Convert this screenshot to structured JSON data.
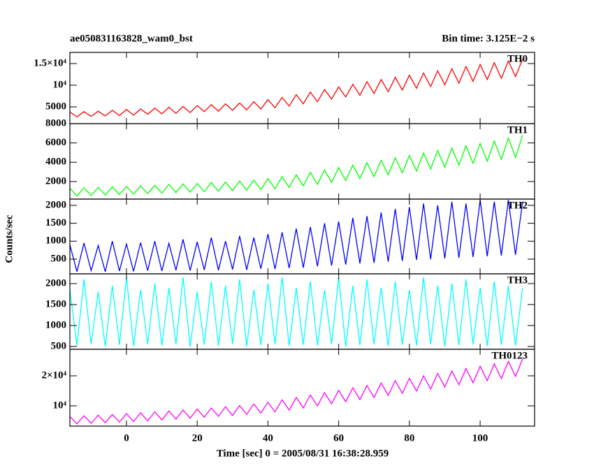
{
  "chart_data": {
    "type": "line",
    "title": "ae050831163828_wam0_bst",
    "subtitle": "Bin time: 3.125E−2 s",
    "xlabel": "Time [sec] 0 = 2005/08/31 16:38:28.959",
    "ylabel": "Counts/sec",
    "xlim": [
      -16,
      115.4
    ],
    "xticks": [
      0,
      20,
      40,
      60,
      80,
      100
    ],
    "x": [
      -16,
      -14,
      -12,
      -10,
      -8,
      -6,
      -4,
      -2,
      0,
      2,
      4,
      6,
      8,
      10,
      12,
      14,
      16,
      18,
      20,
      22,
      24,
      26,
      28,
      30,
      32,
      34,
      36,
      38,
      40,
      42,
      44,
      46,
      48,
      50,
      52,
      54,
      56,
      58,
      60,
      62,
      64,
      66,
      68,
      70,
      72,
      74,
      76,
      78,
      80,
      82,
      84,
      86,
      88,
      90,
      92,
      94,
      96,
      98,
      100,
      102,
      104,
      106,
      108,
      110,
      112
    ],
    "series": [
      {
        "name": "TH0",
        "color": "#ff0000",
        "ylim": [
          1130,
          17580
        ],
        "yticks": [
          5000,
          {
            "value": 10000,
            "label": "10⁴"
          },
          {
            "value": 15000,
            "label": "1.5×10⁴"
          }
        ],
        "values": [
          3800,
          2700,
          3900,
          2800,
          4000,
          2900,
          4200,
          3000,
          4400,
          3100,
          4500,
          3300,
          4700,
          3400,
          4900,
          3500,
          5100,
          3700,
          5300,
          3900,
          5500,
          4000,
          5700,
          4200,
          5900,
          4300,
          6200,
          4500,
          6700,
          4800,
          7200,
          5200,
          7800,
          5700,
          8400,
          6200,
          9000,
          6800,
          9600,
          7300,
          10200,
          7700,
          10800,
          8100,
          11300,
          8500,
          11800,
          8900,
          12300,
          9300,
          12800,
          9700,
          13300,
          10100,
          13800,
          10500,
          14300,
          10900,
          14800,
          11300,
          15200,
          11600,
          15600,
          12000,
          16000
        ]
      },
      {
        "name": "TH1",
        "color": "#00ff00",
        "ylim": [
          180,
          8000
        ],
        "yticks": [
          2000,
          4000,
          6000,
          8000
        ],
        "values": [
          1300,
          500,
          1350,
          550,
          1400,
          600,
          1450,
          650,
          1500,
          700,
          1550,
          750,
          1600,
          800,
          1700,
          850,
          1750,
          900,
          1800,
          950,
          1900,
          1000,
          1950,
          1050,
          2050,
          1100,
          2150,
          1150,
          2300,
          1250,
          2500,
          1400,
          2700,
          1550,
          2950,
          1700,
          3200,
          1900,
          3450,
          2100,
          3700,
          2300,
          3950,
          2500,
          4200,
          2700,
          4450,
          2900,
          4700,
          3100,
          4950,
          3300,
          5200,
          3500,
          5450,
          3700,
          5700,
          3900,
          5950,
          4100,
          6200,
          4300,
          6500,
          4500,
          6800
        ]
      },
      {
        "name": "TH2",
        "color": "#0000ff",
        "ylim": [
          90,
          2175
        ],
        "yticks": [
          500,
          1000,
          1500,
          2000
        ],
        "values": [
          900,
          150,
          950,
          180,
          880,
          150,
          1000,
          170,
          920,
          160,
          960,
          180,
          1000,
          170,
          940,
          190,
          1050,
          180,
          980,
          200,
          1100,
          190,
          1000,
          210,
          1150,
          200,
          1100,
          230,
          1200,
          220,
          1250,
          250,
          1350,
          260,
          1400,
          300,
          1500,
          320,
          1550,
          350,
          1650,
          380,
          1700,
          400,
          1800,
          430,
          1900,
          450,
          1950,
          480,
          2050,
          500,
          2000,
          520,
          2100,
          540,
          2050,
          560,
          2150,
          580,
          2100,
          600,
          2150,
          620,
          2100
        ]
      },
      {
        "name": "TH3",
        "color": "#00ffff",
        "ylim": [
          433,
          2233
        ],
        "yticks": [
          500,
          1000,
          1500,
          2000
        ],
        "values": [
          1850,
          520,
          2100,
          560,
          1800,
          500,
          1950,
          540,
          2150,
          510,
          1850,
          560,
          2000,
          520,
          1900,
          550,
          2150,
          500,
          1800,
          540,
          2050,
          520,
          1950,
          560,
          2100,
          500,
          1850,
          530,
          2000,
          550,
          2150,
          510,
          1900,
          540,
          2050,
          520,
          1850,
          560,
          2150,
          500,
          1950,
          530,
          2100,
          550,
          1900,
          510,
          2050,
          540,
          1850,
          520,
          2150,
          560,
          1950,
          500,
          2000,
          530,
          2100,
          550,
          1900,
          510,
          2050,
          540,
          1950,
          520,
          1900
        ]
      },
      {
        "name": "TH0123",
        "color": "#ff00ff",
        "ylim": [
          3260,
          28840
        ],
        "yticks": [
          {
            "value": 10000,
            "label": "10⁴"
          },
          {
            "value": 20000,
            "label": "2×10⁴"
          }
        ],
        "values": [
          6500,
          4000,
          6700,
          4200,
          6900,
          4400,
          7100,
          4600,
          7400,
          4800,
          7700,
          5000,
          8000,
          5300,
          8300,
          5600,
          8600,
          5900,
          8900,
          6200,
          9300,
          6500,
          9700,
          6800,
          10100,
          7200,
          10600,
          7600,
          11200,
          8000,
          12000,
          8600,
          12800,
          9300,
          13600,
          10000,
          14400,
          10700,
          15200,
          11400,
          16000,
          12100,
          16800,
          12800,
          17600,
          13500,
          18400,
          14200,
          19200,
          14900,
          20000,
          15600,
          20800,
          16300,
          21600,
          17000,
          22400,
          17700,
          23200,
          18400,
          24000,
          19100,
          24800,
          19800,
          25600
        ]
      }
    ]
  }
}
